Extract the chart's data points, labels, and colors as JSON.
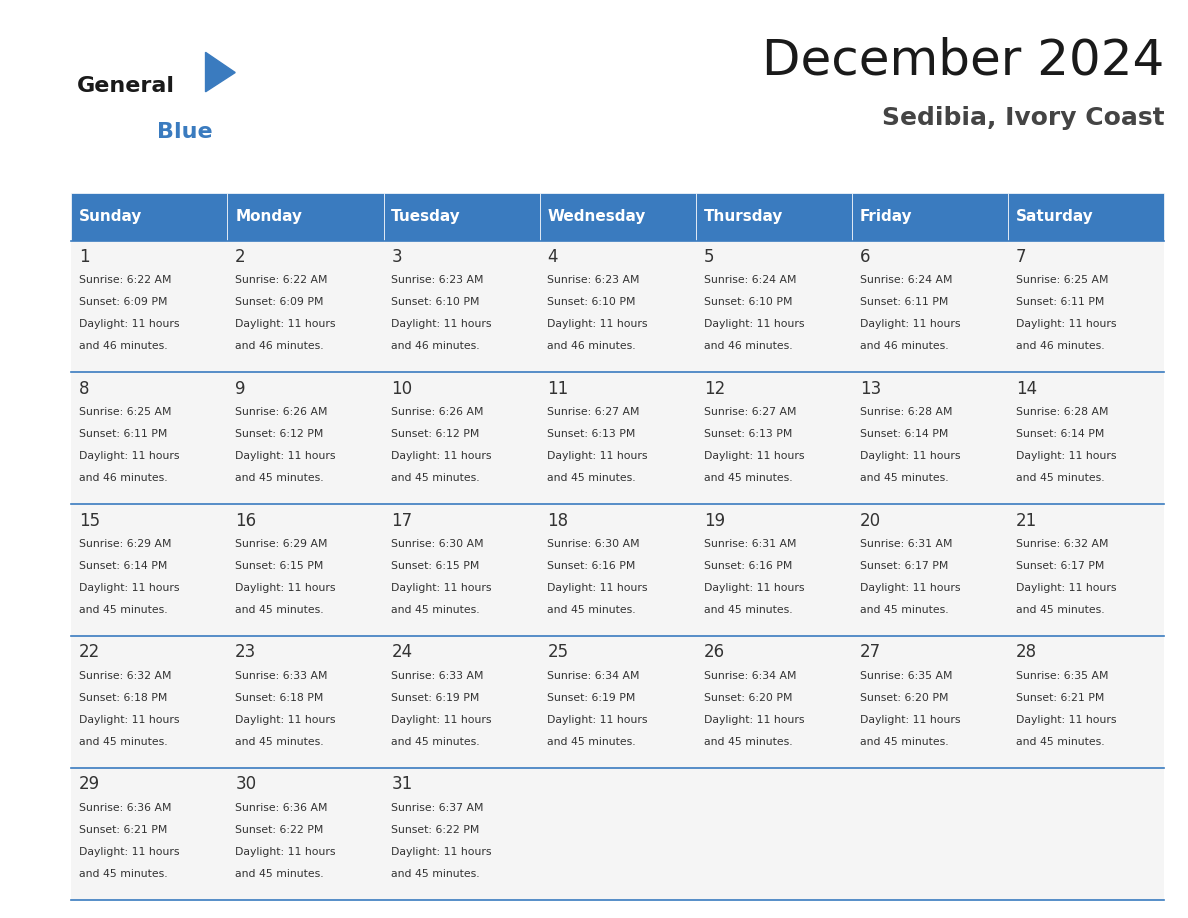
{
  "title": "December 2024",
  "subtitle": "Sedibia, Ivory Coast",
  "header_color": "#3a7bbf",
  "header_text_color": "#ffffff",
  "cell_bg_color": "#f5f5f5",
  "cell_bg_alt": "#ffffff",
  "border_color": "#3a7bbf",
  "day_names": [
    "Sunday",
    "Monday",
    "Tuesday",
    "Wednesday",
    "Thursday",
    "Friday",
    "Saturday"
  ],
  "days": [
    {
      "day": 1,
      "col": 0,
      "row": 0,
      "sunrise": "6:22 AM",
      "sunset": "6:09 PM",
      "daylight": "11 hours and 46 minutes."
    },
    {
      "day": 2,
      "col": 1,
      "row": 0,
      "sunrise": "6:22 AM",
      "sunset": "6:09 PM",
      "daylight": "11 hours and 46 minutes."
    },
    {
      "day": 3,
      "col": 2,
      "row": 0,
      "sunrise": "6:23 AM",
      "sunset": "6:10 PM",
      "daylight": "11 hours and 46 minutes."
    },
    {
      "day": 4,
      "col": 3,
      "row": 0,
      "sunrise": "6:23 AM",
      "sunset": "6:10 PM",
      "daylight": "11 hours and 46 minutes."
    },
    {
      "day": 5,
      "col": 4,
      "row": 0,
      "sunrise": "6:24 AM",
      "sunset": "6:10 PM",
      "daylight": "11 hours and 46 minutes."
    },
    {
      "day": 6,
      "col": 5,
      "row": 0,
      "sunrise": "6:24 AM",
      "sunset": "6:11 PM",
      "daylight": "11 hours and 46 minutes."
    },
    {
      "day": 7,
      "col": 6,
      "row": 0,
      "sunrise": "6:25 AM",
      "sunset": "6:11 PM",
      "daylight": "11 hours and 46 minutes."
    },
    {
      "day": 8,
      "col": 0,
      "row": 1,
      "sunrise": "6:25 AM",
      "sunset": "6:11 PM",
      "daylight": "11 hours and 46 minutes."
    },
    {
      "day": 9,
      "col": 1,
      "row": 1,
      "sunrise": "6:26 AM",
      "sunset": "6:12 PM",
      "daylight": "11 hours and 45 minutes."
    },
    {
      "day": 10,
      "col": 2,
      "row": 1,
      "sunrise": "6:26 AM",
      "sunset": "6:12 PM",
      "daylight": "11 hours and 45 minutes."
    },
    {
      "day": 11,
      "col": 3,
      "row": 1,
      "sunrise": "6:27 AM",
      "sunset": "6:13 PM",
      "daylight": "11 hours and 45 minutes."
    },
    {
      "day": 12,
      "col": 4,
      "row": 1,
      "sunrise": "6:27 AM",
      "sunset": "6:13 PM",
      "daylight": "11 hours and 45 minutes."
    },
    {
      "day": 13,
      "col": 5,
      "row": 1,
      "sunrise": "6:28 AM",
      "sunset": "6:14 PM",
      "daylight": "11 hours and 45 minutes."
    },
    {
      "day": 14,
      "col": 6,
      "row": 1,
      "sunrise": "6:28 AM",
      "sunset": "6:14 PM",
      "daylight": "11 hours and 45 minutes."
    },
    {
      "day": 15,
      "col": 0,
      "row": 2,
      "sunrise": "6:29 AM",
      "sunset": "6:14 PM",
      "daylight": "11 hours and 45 minutes."
    },
    {
      "day": 16,
      "col": 1,
      "row": 2,
      "sunrise": "6:29 AM",
      "sunset": "6:15 PM",
      "daylight": "11 hours and 45 minutes."
    },
    {
      "day": 17,
      "col": 2,
      "row": 2,
      "sunrise": "6:30 AM",
      "sunset": "6:15 PM",
      "daylight": "11 hours and 45 minutes."
    },
    {
      "day": 18,
      "col": 3,
      "row": 2,
      "sunrise": "6:30 AM",
      "sunset": "6:16 PM",
      "daylight": "11 hours and 45 minutes."
    },
    {
      "day": 19,
      "col": 4,
      "row": 2,
      "sunrise": "6:31 AM",
      "sunset": "6:16 PM",
      "daylight": "11 hours and 45 minutes."
    },
    {
      "day": 20,
      "col": 5,
      "row": 2,
      "sunrise": "6:31 AM",
      "sunset": "6:17 PM",
      "daylight": "11 hours and 45 minutes."
    },
    {
      "day": 21,
      "col": 6,
      "row": 2,
      "sunrise": "6:32 AM",
      "sunset": "6:17 PM",
      "daylight": "11 hours and 45 minutes."
    },
    {
      "day": 22,
      "col": 0,
      "row": 3,
      "sunrise": "6:32 AM",
      "sunset": "6:18 PM",
      "daylight": "11 hours and 45 minutes."
    },
    {
      "day": 23,
      "col": 1,
      "row": 3,
      "sunrise": "6:33 AM",
      "sunset": "6:18 PM",
      "daylight": "11 hours and 45 minutes."
    },
    {
      "day": 24,
      "col": 2,
      "row": 3,
      "sunrise": "6:33 AM",
      "sunset": "6:19 PM",
      "daylight": "11 hours and 45 minutes."
    },
    {
      "day": 25,
      "col": 3,
      "row": 3,
      "sunrise": "6:34 AM",
      "sunset": "6:19 PM",
      "daylight": "11 hours and 45 minutes."
    },
    {
      "day": 26,
      "col": 4,
      "row": 3,
      "sunrise": "6:34 AM",
      "sunset": "6:20 PM",
      "daylight": "11 hours and 45 minutes."
    },
    {
      "day": 27,
      "col": 5,
      "row": 3,
      "sunrise": "6:35 AM",
      "sunset": "6:20 PM",
      "daylight": "11 hours and 45 minutes."
    },
    {
      "day": 28,
      "col": 6,
      "row": 3,
      "sunrise": "6:35 AM",
      "sunset": "6:21 PM",
      "daylight": "11 hours and 45 minutes."
    },
    {
      "day": 29,
      "col": 0,
      "row": 4,
      "sunrise": "6:36 AM",
      "sunset": "6:21 PM",
      "daylight": "11 hours and 45 minutes."
    },
    {
      "day": 30,
      "col": 1,
      "row": 4,
      "sunrise": "6:36 AM",
      "sunset": "6:22 PM",
      "daylight": "11 hours and 45 minutes."
    },
    {
      "day": 31,
      "col": 2,
      "row": 4,
      "sunrise": "6:37 AM",
      "sunset": "6:22 PM",
      "daylight": "11 hours and 45 minutes."
    }
  ],
  "logo_text_general": "General",
  "logo_text_blue": "Blue",
  "logo_color_general": "#1a1a1a",
  "logo_color_blue": "#3a7bbf",
  "logo_triangle_color": "#3a7bbf"
}
